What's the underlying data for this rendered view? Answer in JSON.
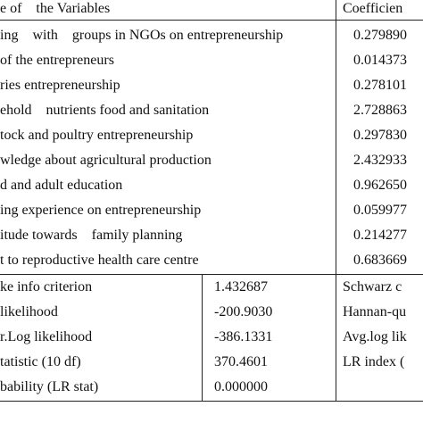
{
  "table": {
    "header": [
      "e of    the Variables",
      "Coefficien"
    ],
    "rows": [
      [
        "ing    with    groups in NGOs on entrepreneurship",
        "0.279890"
      ],
      [
        "of the entrepreneurs",
        "0.014373"
      ],
      [
        "ries entrepreneurship",
        "0.278101"
      ],
      [
        "ehold    nutrients food and sanitation",
        "2.728863"
      ],
      [
        "tock and poultry entrepreneurship",
        "0.297830"
      ],
      [
        "wledge about agricultural production",
        "2.432933"
      ],
      [
        "d and adult education",
        "0.962650"
      ],
      [
        "ing experience on entrepreneurship",
        "0.059977"
      ],
      [
        "itude towards    family planning",
        "0.214277"
      ],
      [
        "t to reproductive health care centre",
        "0.683669"
      ]
    ]
  },
  "stats": {
    "rows": [
      [
        "ke info criterion",
        "1.432687",
        "Schwarz c"
      ],
      [
        "likelihood",
        "-200.9030",
        "Hannan-qu"
      ],
      [
        "r.Log likelihood",
        "-386.1331",
        "Avg.log lik"
      ],
      [
        "tatistic (10 df)",
        "370.4601",
        "LR index ("
      ],
      [
        "bability (LR stat)",
        "0.000000",
        ""
      ]
    ]
  }
}
